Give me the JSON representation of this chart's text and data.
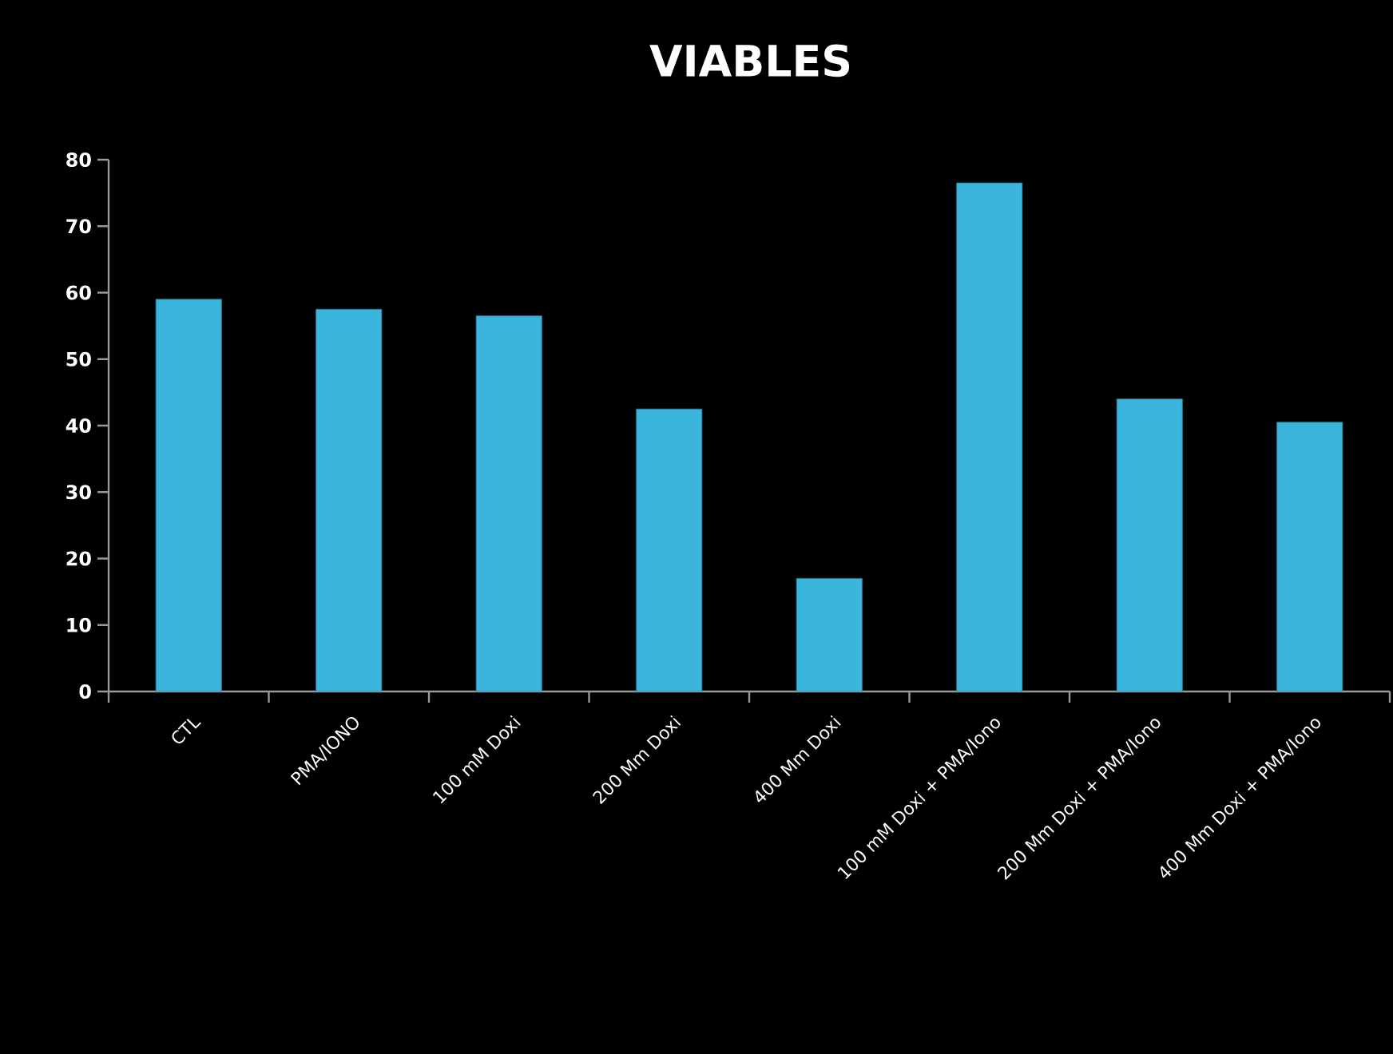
{
  "chart_data": {
    "type": "bar",
    "title": "VIABLES",
    "categories": [
      "CTL",
      "PMA/IONO",
      "100 mM Doxi",
      "200 Mm Doxi",
      "400 Mm Doxi",
      "100 mM Doxi + PMA/Iono",
      "200 Mm Doxi + PMA/Iono",
      "400 Mm Doxi + PMA/Iono"
    ],
    "values": [
      59,
      57.5,
      56.5,
      42.5,
      17,
      76.5,
      44,
      40.5
    ],
    "color": "#3bb5dc",
    "ylim": [
      0,
      80
    ],
    "yticks": [
      0,
      10,
      20,
      30,
      40,
      50,
      60,
      70,
      80
    ],
    "grid": false
  }
}
